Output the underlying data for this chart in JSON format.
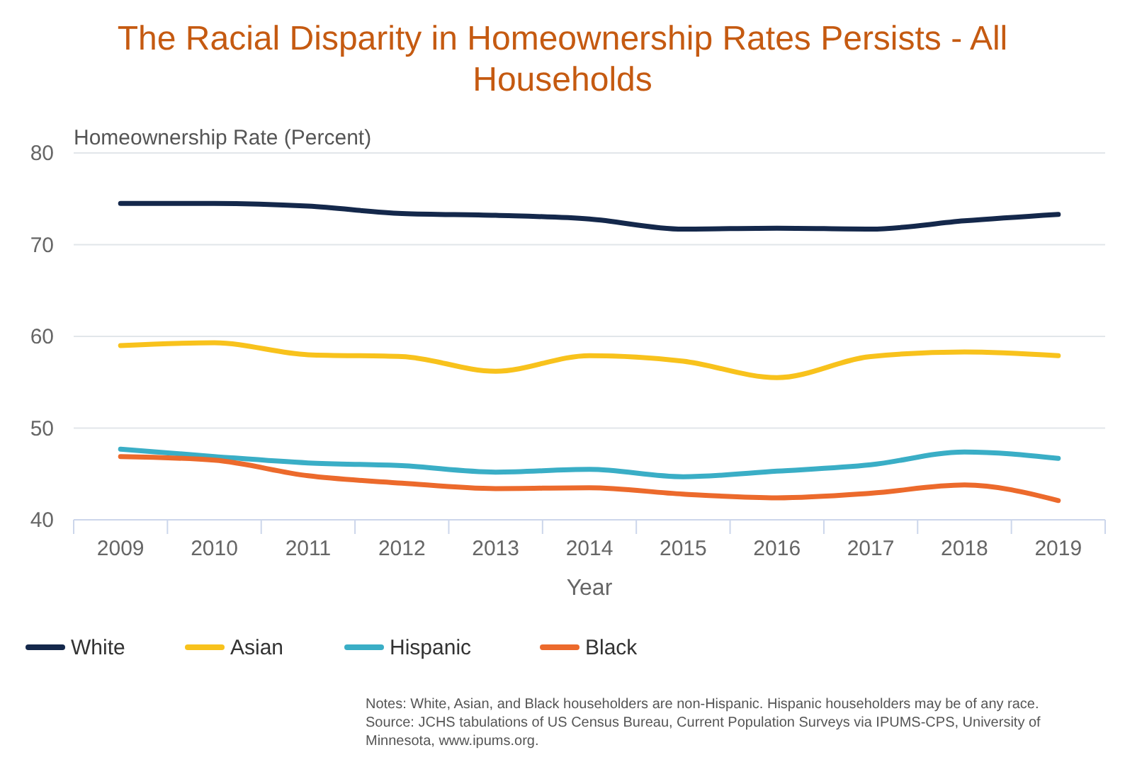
{
  "chart_data": {
    "type": "line",
    "title": "The Racial Disparity in Homeownership Rates Persists - All Households",
    "ylabel": "Homeownership Rate (Percent)",
    "xlabel": "Year",
    "categories": [
      "2009",
      "2010",
      "2011",
      "2012",
      "2013",
      "2014",
      "2015",
      "2016",
      "2017",
      "2018",
      "2019"
    ],
    "series": [
      {
        "name": "White",
        "color": "#14284b",
        "values": [
          74.5,
          74.5,
          74.2,
          73.4,
          73.2,
          72.8,
          71.7,
          71.8,
          71.7,
          72.6,
          73.3
        ]
      },
      {
        "name": "Asian",
        "color": "#f8c21c",
        "values": [
          59.0,
          59.3,
          58.0,
          57.8,
          56.2,
          57.9,
          57.3,
          55.5,
          57.8,
          58.3,
          57.9
        ]
      },
      {
        "name": "Hispanic",
        "color": "#3aaec6",
        "values": [
          47.7,
          46.9,
          46.2,
          45.9,
          45.2,
          45.5,
          44.7,
          45.3,
          46.0,
          47.4,
          46.7
        ]
      },
      {
        "name": "Black",
        "color": "#ec6a2c",
        "values": [
          46.9,
          46.5,
          44.8,
          44.0,
          43.4,
          43.5,
          42.8,
          42.4,
          42.9,
          43.8,
          42.1
        ]
      }
    ],
    "ylim": [
      40,
      80
    ],
    "yticks": [
      40,
      50,
      60,
      70,
      80
    ],
    "grid": "y",
    "legend": "bottom left",
    "marker": "none",
    "line_style": "solid",
    "annotations": [
      "Notes: White, Asian, and Black householders are non-Hispanic. Hispanic householders may be of any race.",
      "Source: JCHS tabulations of US Census Bureau, Current Population Surveys via IPUMS-CPS, University of Minnesota, www.ipums.org."
    ]
  }
}
